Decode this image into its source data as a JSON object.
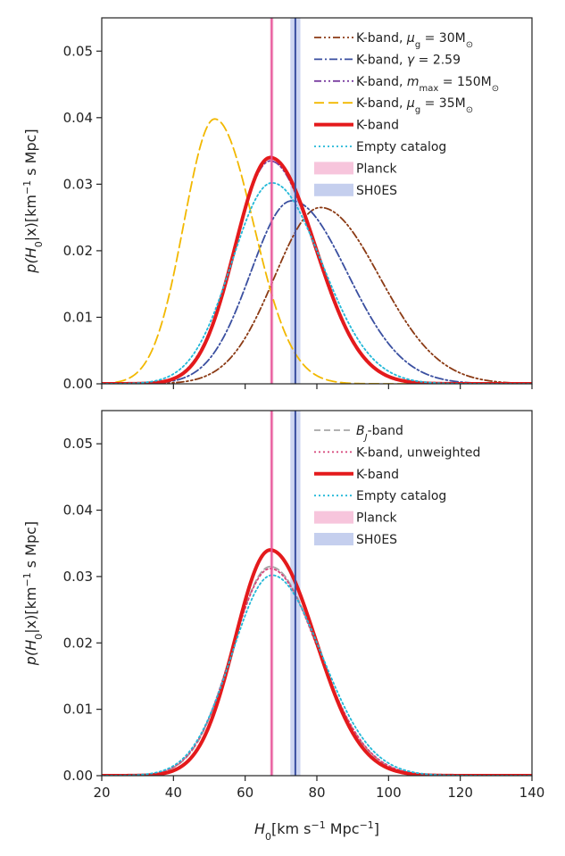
{
  "chart_data": [
    {
      "type": "line",
      "panel": "top",
      "xlim": [
        20,
        140
      ],
      "ylim": [
        0,
        0.055
      ],
      "xticks": [
        20,
        40,
        60,
        80,
        100,
        120,
        140
      ],
      "yticks": [
        0.0,
        0.01,
        0.02,
        0.03,
        0.04,
        0.05
      ],
      "ytick_labels": [
        "0.00",
        "0.01",
        "0.02",
        "0.03",
        "0.04",
        "0.05"
      ],
      "ylabel": "p(H₀|x)[km⁻¹ s Mpc]",
      "legend_position": "upper-right",
      "series": [
        {
          "name": "K-band, μg = 30M⊙",
          "color": "#8b3a14",
          "dash": "dashdotdot",
          "width": 1.8,
          "peak": 0.0265,
          "mu": 81,
          "sigma_left": 12.8,
          "sigma_right": 16.5
        },
        {
          "name": "K-band, γ = 2.59",
          "color": "#3a4fa0",
          "dash": "dashdot",
          "width": 1.8,
          "peak": 0.0275,
          "mu": 73,
          "sigma_left": 11.5,
          "sigma_right": 15.5
        },
        {
          "name": "K-band, mmax = 150M⊙",
          "color": "#7a3fa0",
          "dash": "dashdotdot",
          "width": 1.8,
          "peak": 0.0335,
          "mu": 67,
          "sigma_left": 10,
          "sigma_right": 12.5
        },
        {
          "name": "K-band, μg = 35M⊙",
          "color": "#f2b800",
          "dash": "longdash",
          "width": 1.8,
          "peak": 0.0398,
          "mu": 51.5,
          "sigma_left": 8.6,
          "sigma_right": 10.8
        },
        {
          "name": "K-band",
          "color": "#e41a1c",
          "dash": "solid",
          "width": 4,
          "peak": 0.034,
          "mu": 67,
          "sigma_left": 9.8,
          "sigma_right": 12.6
        },
        {
          "name": "Empty catalog",
          "color": "#22b8d8",
          "dash": "dotted",
          "width": 1.8,
          "peak": 0.0302,
          "mu": 67.5,
          "sigma_left": 11.2,
          "sigma_right": 13.8
        }
      ],
      "bands": [
        {
          "name": "Planck",
          "center": 67.4,
          "lo": 66.9,
          "hi": 67.9,
          "color": "#e8559a",
          "fill": "#f7c5dc"
        },
        {
          "name": "SH0ES",
          "center": 74.0,
          "lo": 72.6,
          "hi": 75.4,
          "color": "#3a4fa0",
          "fill": "#c5cfee"
        }
      ],
      "legend": [
        {
          "label": "K-band, μg = 30M⊙",
          "kind": "line",
          "ref": 0
        },
        {
          "label": "K-band, γ = 2.59",
          "kind": "line",
          "ref": 1
        },
        {
          "label": "K-band, mmax = 150M⊙",
          "kind": "line",
          "ref": 2
        },
        {
          "label": "K-band, μg = 35M⊙",
          "kind": "line",
          "ref": 3
        },
        {
          "label": "K-band",
          "kind": "line",
          "ref": 4
        },
        {
          "label": "Empty catalog",
          "kind": "line",
          "ref": 5
        },
        {
          "label": "Planck",
          "kind": "patch",
          "ref": 0
        },
        {
          "label": "SH0ES",
          "kind": "patch",
          "ref": 1
        }
      ]
    },
    {
      "type": "line",
      "panel": "bottom",
      "xlim": [
        20,
        140
      ],
      "ylim": [
        0,
        0.055
      ],
      "xticks": [
        20,
        40,
        60,
        80,
        100,
        120,
        140
      ],
      "xtick_labels": [
        "20",
        "40",
        "60",
        "80",
        "100",
        "120",
        "140"
      ],
      "yticks": [
        0.0,
        0.01,
        0.02,
        0.03,
        0.04,
        0.05
      ],
      "ytick_labels": [
        "0.00",
        "0.01",
        "0.02",
        "0.03",
        "0.04",
        "0.05"
      ],
      "xlabel": "H₀[km s⁻¹ Mpc⁻¹]",
      "ylabel": "p(H₀|x)[km⁻¹ s Mpc]",
      "legend_position": "upper-right",
      "series": [
        {
          "name": "BJ-band",
          "color": "#a6a6a6",
          "dash": "dashed",
          "width": 1.8,
          "peak": 0.0315,
          "mu": 67,
          "sigma_left": 10.6,
          "sigma_right": 13.3
        },
        {
          "name": "K-band, unweighted",
          "color": "#d6457a",
          "dash": "dotted",
          "width": 1.8,
          "peak": 0.0312,
          "mu": 67,
          "sigma_left": 10.7,
          "sigma_right": 13.4
        },
        {
          "name": "K-band",
          "color": "#e41a1c",
          "dash": "solid",
          "width": 4,
          "peak": 0.034,
          "mu": 67,
          "sigma_left": 9.8,
          "sigma_right": 12.6
        },
        {
          "name": "Empty catalog",
          "color": "#22b8d8",
          "dash": "dotted",
          "width": 1.8,
          "peak": 0.0302,
          "mu": 67.5,
          "sigma_left": 11.2,
          "sigma_right": 13.8
        }
      ],
      "bands": [
        {
          "name": "Planck",
          "center": 67.4,
          "lo": 66.9,
          "hi": 67.9,
          "color": "#e8559a",
          "fill": "#f7c5dc"
        },
        {
          "name": "SH0ES",
          "center": 74.0,
          "lo": 72.6,
          "hi": 75.4,
          "color": "#3a4fa0",
          "fill": "#c5cfee"
        }
      ],
      "legend": [
        {
          "label": "BJ-band",
          "kind": "line",
          "ref": 0
        },
        {
          "label": "K-band, unweighted",
          "kind": "line",
          "ref": 1
        },
        {
          "label": "K-band",
          "kind": "line",
          "ref": 2
        },
        {
          "label": "Empty catalog",
          "kind": "line",
          "ref": 3
        },
        {
          "label": "Planck",
          "kind": "patch",
          "ref": 0
        },
        {
          "label": "SH0ES",
          "kind": "patch",
          "ref": 1
        }
      ]
    }
  ]
}
